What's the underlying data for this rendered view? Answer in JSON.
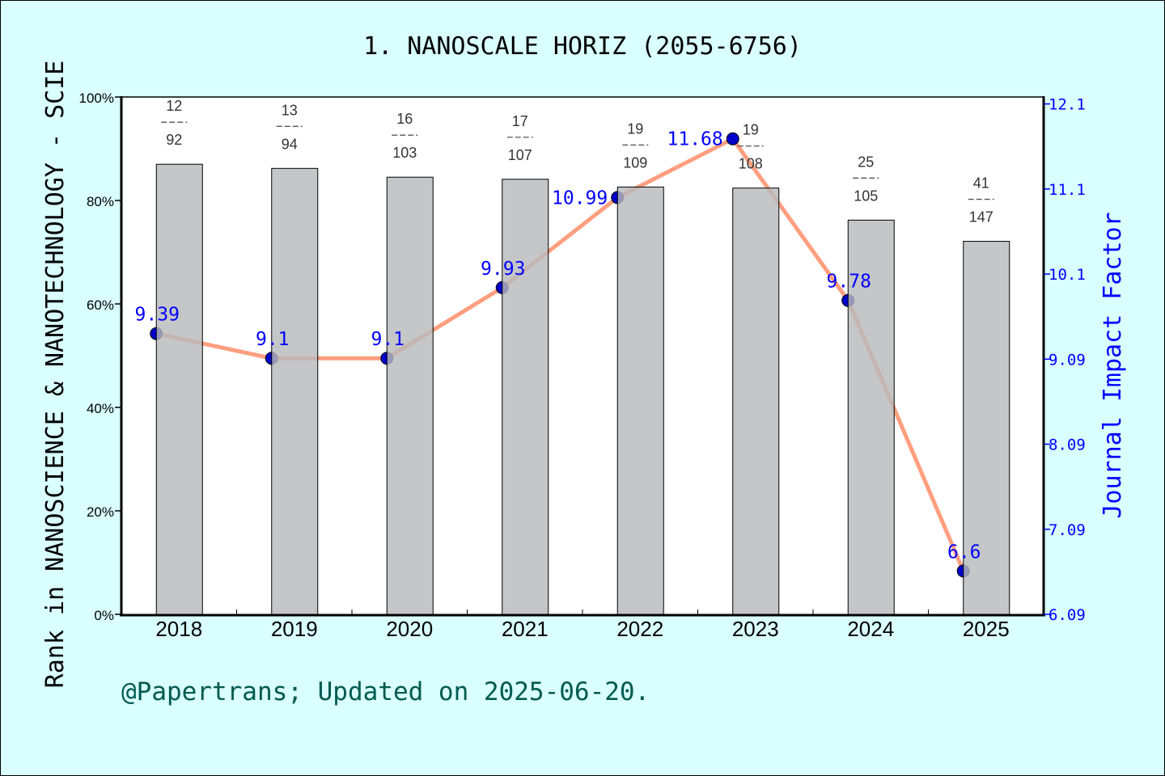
{
  "chart_data": {
    "type": "bar+line",
    "title": "1. NANOSCALE HORIZ (2055-6756)",
    "categories": [
      "2018",
      "2019",
      "2020",
      "2021",
      "2022",
      "2023",
      "2024",
      "2025"
    ],
    "ranks": [
      {
        "rank": "12",
        "total": "92"
      },
      {
        "rank": "13",
        "total": "94"
      },
      {
        "rank": "16",
        "total": "103"
      },
      {
        "rank": "17",
        "total": "107"
      },
      {
        "rank": "19",
        "total": "109"
      },
      {
        "rank": "19",
        "total": "108"
      },
      {
        "rank": "25",
        "total": "105"
      },
      {
        "rank": "41",
        "total": "147"
      }
    ],
    "bar_values_percent": [
      87.0,
      86.2,
      84.5,
      84.1,
      82.6,
      82.4,
      76.2,
      72.1
    ],
    "impact_factor": [
      9.39,
      9.1,
      9.1,
      9.93,
      10.99,
      11.68,
      9.78,
      6.6
    ],
    "impact_factor_labels": [
      "9.39",
      "9.1",
      "9.1",
      "9.93",
      "10.99",
      "11.68",
      "9.78",
      "6.6"
    ],
    "ylabel_left": "Rank in NANOSCIENCE & NANOTECHNOLOGY - SCIE",
    "ylabel_right": "Journal Impact Factor",
    "ylim_left": [
      0,
      100
    ],
    "left_ticks": [
      "0%",
      "20%",
      "40%",
      "60%",
      "80%",
      "100%"
    ],
    "ylim_right": [
      6.09,
      12.1
    ],
    "right_ticks": [
      "6.09",
      "7.09",
      "8.09",
      "9.09",
      "10.1",
      "11.1",
      "12.1"
    ],
    "grid": false,
    "colors": {
      "bar": "#b8b9bb",
      "line": "#ff9f7f",
      "point": "#0000cc",
      "right_axis": "#0000ff",
      "background": "#d9ffff",
      "footer": "#005a50"
    }
  },
  "footer": "@Papertrans; Updated on 2025-06-20."
}
